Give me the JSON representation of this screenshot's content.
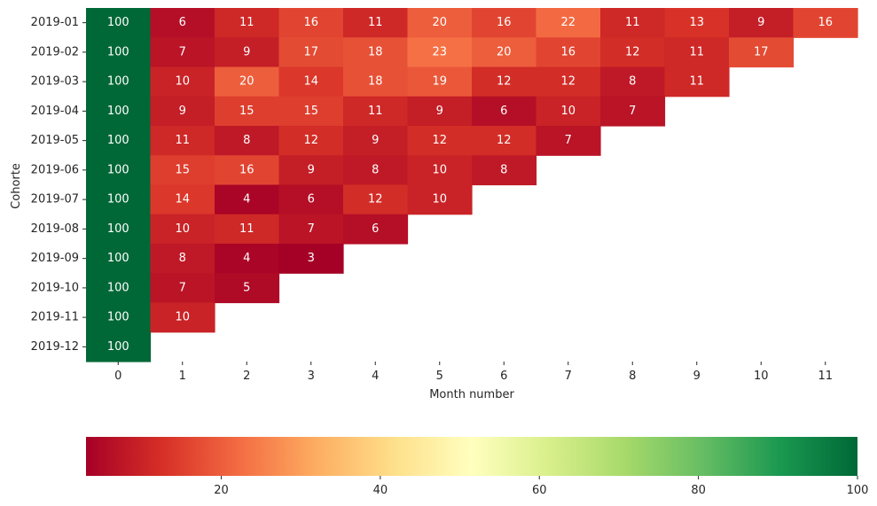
{
  "chart_data": {
    "type": "heatmap",
    "title": "",
    "xlabel": "Month number",
    "ylabel": "Cohorte",
    "rows": [
      "2019-01",
      "2019-02",
      "2019-03",
      "2019-04",
      "2019-05",
      "2019-06",
      "2019-07",
      "2019-08",
      "2019-09",
      "2019-10",
      "2019-11",
      "2019-12"
    ],
    "columns": [
      "0",
      "1",
      "2",
      "3",
      "4",
      "5",
      "6",
      "7",
      "8",
      "9",
      "10",
      "11"
    ],
    "values": [
      [
        100,
        6,
        11,
        16,
        11,
        20,
        16,
        22,
        11,
        13,
        9,
        16
      ],
      [
        100,
        7,
        9,
        17,
        18,
        23,
        20,
        16,
        12,
        11,
        17
      ],
      [
        100,
        10,
        20,
        14,
        18,
        19,
        12,
        12,
        8,
        11
      ],
      [
        100,
        9,
        15,
        15,
        11,
        9,
        6,
        10,
        7
      ],
      [
        100,
        11,
        8,
        12,
        9,
        12,
        12,
        7
      ],
      [
        100,
        15,
        16,
        9,
        8,
        10,
        8
      ],
      [
        100,
        14,
        4,
        6,
        12,
        10
      ],
      [
        100,
        10,
        11,
        7,
        6
      ],
      [
        100,
        8,
        4,
        3
      ],
      [
        100,
        7,
        5
      ],
      [
        100,
        10
      ],
      [
        100
      ]
    ],
    "colormap": "RdYlGn",
    "colormap_stops": [
      "#a50026",
      "#d73027",
      "#f46d43",
      "#fdae61",
      "#fee08b",
      "#ffffbf",
      "#d9ef8b",
      "#a6d96a",
      "#66bd63",
      "#1a9850",
      "#006837"
    ],
    "vmin": 3,
    "vmax": 100,
    "colorbar": {
      "orientation": "horizontal",
      "position": "bottom",
      "ticks": [
        20,
        40,
        60,
        80,
        100
      ],
      "tick_labels": [
        "20",
        "40",
        "60",
        "80",
        "100"
      ]
    },
    "annotations": true,
    "annotation_color": "#ffffff"
  }
}
